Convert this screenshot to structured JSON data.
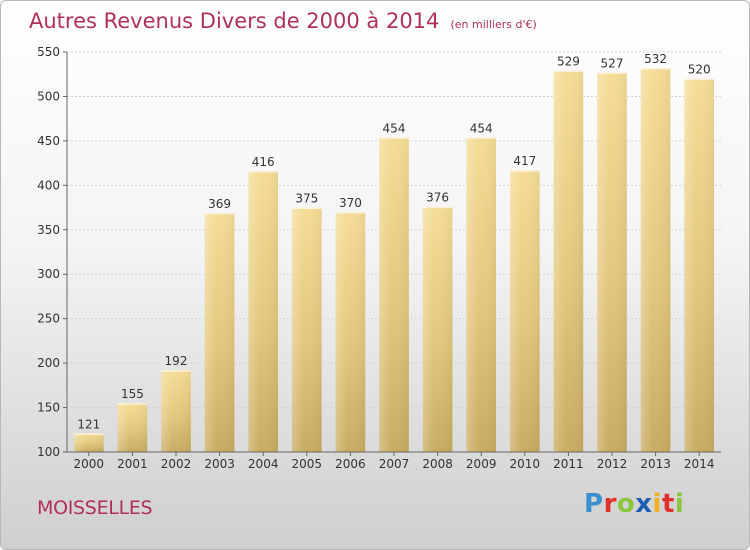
{
  "title": "Autres Revenus Divers de 2000 à 2014",
  "unit_note": "(en milliers d'€)",
  "location": "MOISSELLES",
  "logo": {
    "text": "Proxiti",
    "letters": [
      {
        "ch": "P",
        "color": "#3a8fd0"
      },
      {
        "ch": "r",
        "color": "#e0302a"
      },
      {
        "ch": "o",
        "color": "#8cc63f"
      },
      {
        "ch": "x",
        "color": "#1e5fb3"
      },
      {
        "ch": "i",
        "color": "#f0b020"
      },
      {
        "ch": "t",
        "color": "#e0302a"
      },
      {
        "ch": "i",
        "color": "#8cc63f"
      }
    ]
  },
  "chart_data": {
    "type": "bar",
    "categories": [
      "2000",
      "2001",
      "2002",
      "2003",
      "2004",
      "2005",
      "2006",
      "2007",
      "2008",
      "2009",
      "2010",
      "2011",
      "2012",
      "2013",
      "2014"
    ],
    "values": [
      121,
      155,
      192,
      369,
      416,
      375,
      370,
      454,
      376,
      454,
      417,
      529,
      527,
      532,
      520
    ],
    "data_labels": [
      "121",
      "155",
      "192",
      "369",
      "416",
      "375",
      "370",
      "454",
      "376",
      "454",
      "417",
      "529",
      "527",
      "532",
      "520"
    ],
    "ylim": [
      100,
      550
    ],
    "yticks": [
      100,
      150,
      200,
      250,
      300,
      350,
      400,
      450,
      500,
      550
    ],
    "grid": true,
    "bar_color": "#e8cd80"
  }
}
